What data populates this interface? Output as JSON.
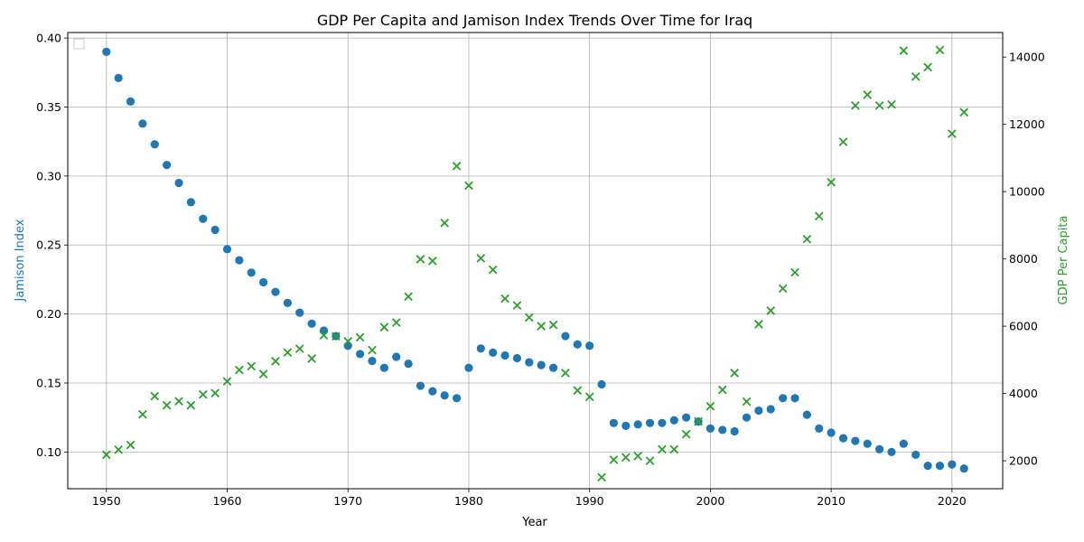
{
  "chart_data": {
    "type": "scatter",
    "title": "GDP Per Capita and Jamison Index Trends Over Time for Iraq",
    "xlabel": "Year",
    "ylabel_left": "Jamison Index",
    "ylabel_right": "GDP Per Capita",
    "xlim": [
      1946.8,
      2024.2
    ],
    "ylim_left": [
      0.0734,
      0.404
    ],
    "ylim_right": [
      1170,
      14730
    ],
    "x_ticks": [
      1950,
      1960,
      1970,
      1980,
      1990,
      2000,
      2010,
      2020
    ],
    "y_ticks_left": [
      0.1,
      0.15,
      0.2,
      0.25,
      0.3,
      0.35,
      0.4
    ],
    "y_ticks_right": [
      2000,
      4000,
      6000,
      8000,
      10000,
      12000,
      14000
    ],
    "grid": true,
    "legend": "top-left (empty)",
    "colors": {
      "jamison": "#1f77b4",
      "gdp": "#2ca02c"
    },
    "series": [
      {
        "name": "Jamison Index",
        "axis": "left",
        "marker": "circle",
        "x": [
          1950,
          1951,
          1952,
          1953,
          1954,
          1955,
          1956,
          1957,
          1958,
          1959,
          1960,
          1961,
          1962,
          1963,
          1964,
          1965,
          1966,
          1967,
          1968,
          1969,
          1970,
          1971,
          1972,
          1973,
          1974,
          1975,
          1976,
          1977,
          1978,
          1979,
          1980,
          1981,
          1982,
          1983,
          1984,
          1985,
          1986,
          1987,
          1988,
          1989,
          1990,
          1991,
          1992,
          1993,
          1994,
          1995,
          1996,
          1997,
          1998,
          1999,
          2000,
          2001,
          2002,
          2003,
          2004,
          2005,
          2006,
          2007,
          2008,
          2009,
          2010,
          2011,
          2012,
          2013,
          2014,
          2015,
          2016,
          2017,
          2018,
          2019,
          2020,
          2021
        ],
        "y": [
          0.39,
          0.371,
          0.354,
          0.338,
          0.323,
          0.308,
          0.295,
          0.281,
          0.269,
          0.261,
          0.247,
          0.239,
          0.23,
          0.223,
          0.216,
          0.208,
          0.201,
          0.193,
          0.188,
          0.184,
          0.177,
          0.171,
          0.166,
          0.161,
          0.169,
          0.164,
          0.148,
          0.144,
          0.141,
          0.139,
          0.161,
          0.175,
          0.172,
          0.17,
          0.168,
          0.165,
          0.163,
          0.161,
          0.184,
          0.178,
          0.177,
          0.149,
          0.121,
          0.119,
          0.12,
          0.121,
          0.121,
          0.123,
          0.125,
          0.122,
          0.117,
          0.116,
          0.115,
          0.125,
          0.13,
          0.131,
          0.139,
          0.139,
          0.127,
          0.117,
          0.114,
          0.11,
          0.108,
          0.106,
          0.102,
          0.1,
          0.106,
          0.098,
          0.09,
          0.09,
          0.091,
          0.088
        ]
      },
      {
        "name": "GDP Per Capita",
        "axis": "right",
        "marker": "x",
        "x": [
          1950,
          1951,
          1952,
          1953,
          1954,
          1955,
          1956,
          1957,
          1958,
          1959,
          1960,
          1961,
          1962,
          1963,
          1964,
          1965,
          1966,
          1967,
          1968,
          1969,
          1970,
          1971,
          1972,
          1973,
          1974,
          1975,
          1976,
          1977,
          1978,
          1979,
          1980,
          1981,
          1982,
          1983,
          1984,
          1985,
          1986,
          1987,
          1988,
          1989,
          1990,
          1991,
          1992,
          1993,
          1994,
          1995,
          1996,
          1997,
          1998,
          1999,
          2000,
          2001,
          2002,
          2003,
          2004,
          2005,
          2006,
          2007,
          2008,
          2009,
          2010,
          2011,
          2012,
          2013,
          2014,
          2015,
          2016,
          2017,
          2018,
          2019,
          2020,
          2021
        ],
        "y": [
          2180,
          2330,
          2470,
          3380,
          3920,
          3650,
          3770,
          3650,
          3970,
          4010,
          4360,
          4700,
          4810,
          4580,
          4960,
          5220,
          5330,
          5040,
          5730,
          5700,
          5550,
          5670,
          5290,
          5970,
          6110,
          6880,
          7990,
          7940,
          9070,
          10760,
          10180,
          8020,
          7680,
          6820,
          6620,
          6260,
          6000,
          6040,
          4610,
          4090,
          3900,
          1510,
          2030,
          2100,
          2140,
          2000,
          2340,
          2340,
          2790,
          3170,
          3620,
          4110,
          4610,
          3760,
          6060,
          6460,
          7120,
          7600,
          8590,
          9270,
          10280,
          11480,
          12560,
          12880,
          12560,
          12590,
          14190,
          13420,
          13700,
          14210,
          11720,
          12360
        ]
      }
    ]
  }
}
